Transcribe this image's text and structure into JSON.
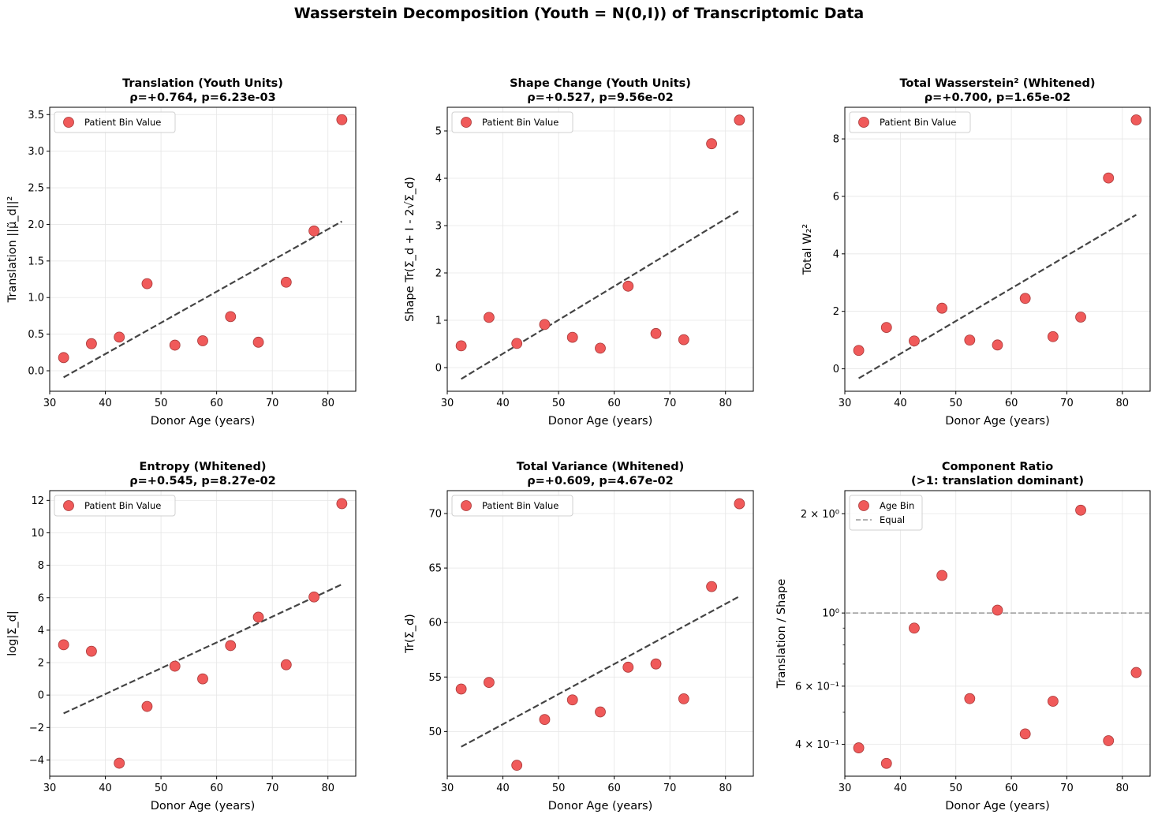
{
  "figure_title": "Wasserstein Decomposition (Youth = N(0,I)) of Transcriptomic Data",
  "colors": {
    "point": "#f05a5a",
    "point_edge": "#a83a3a",
    "trend": "#444444",
    "ref_line": "#999999",
    "grid": "#e6e6e6"
  },
  "chart_data": [
    {
      "type": "scatter",
      "title": "Translation (Youth Units)",
      "subtitle": "ρ=+0.764, p=6.23e-03",
      "xlabel": "Donor Age (years)",
      "ylabel": "Translation ||μ̃_d||²",
      "xlim": [
        30,
        85
      ],
      "ylim": [
        -0.28,
        3.6
      ],
      "xticks": [
        30,
        40,
        50,
        60,
        70,
        80
      ],
      "xtick_labels": [
        "30",
        "40",
        "50",
        "60",
        "70",
        "80"
      ],
      "yticks": [
        0,
        0.5,
        1,
        1.5,
        2,
        2.5,
        3,
        3.5
      ],
      "ytick_labels": [
        "0.0",
        "0.5",
        "1.0",
        "1.5",
        "2.0",
        "2.5",
        "3.0",
        "3.5"
      ],
      "yscale": "linear",
      "grid": true,
      "legend": "upper-left",
      "legend_entries": [
        "Patient Bin Value"
      ],
      "x": [
        32.5,
        37.5,
        42.5,
        47.5,
        52.5,
        57.5,
        62.5,
        67.5,
        72.5,
        77.5,
        82.5
      ],
      "y": [
        0.18,
        0.37,
        0.46,
        1.19,
        0.35,
        0.41,
        0.74,
        0.39,
        1.21,
        1.91,
        3.43
      ],
      "trend": {
        "x": [
          32.5,
          82.5
        ],
        "y": [
          -0.09,
          2.04
        ]
      }
    },
    {
      "type": "scatter",
      "title": "Shape Change (Youth Units)",
      "subtitle": "ρ=+0.527, p=9.56e-02",
      "xlabel": "Donor Age (years)",
      "ylabel": "Shape Tr(Σ_d + I - 2√Σ_d)",
      "xlim": [
        30,
        85
      ],
      "ylim": [
        -0.5,
        5.5
      ],
      "xticks": [
        30,
        40,
        50,
        60,
        70,
        80
      ],
      "xtick_labels": [
        "30",
        "40",
        "50",
        "60",
        "70",
        "80"
      ],
      "yticks": [
        0,
        1,
        2,
        3,
        4,
        5
      ],
      "ytick_labels": [
        "0",
        "1",
        "2",
        "3",
        "4",
        "5"
      ],
      "yscale": "linear",
      "grid": true,
      "legend": "upper-left",
      "legend_entries": [
        "Patient Bin Value"
      ],
      "x": [
        32.5,
        37.5,
        42.5,
        47.5,
        52.5,
        57.5,
        62.5,
        67.5,
        72.5,
        77.5,
        82.5
      ],
      "y": [
        0.46,
        1.06,
        0.51,
        0.91,
        0.64,
        0.41,
        1.72,
        0.72,
        0.59,
        4.73,
        5.23
      ],
      "trend": {
        "x": [
          32.5,
          82.5
        ],
        "y": [
          -0.24,
          3.32
        ]
      }
    },
    {
      "type": "scatter",
      "title": "Total Wasserstein² (Whitened)",
      "subtitle": "ρ=+0.700, p=1.65e-02",
      "xlabel": "Donor Age (years)",
      "ylabel": "Total W₂²",
      "xlim": [
        30,
        85
      ],
      "ylim": [
        -0.78,
        9.1
      ],
      "xticks": [
        30,
        40,
        50,
        60,
        70,
        80
      ],
      "xtick_labels": [
        "30",
        "40",
        "50",
        "60",
        "70",
        "80"
      ],
      "yticks": [
        0,
        2,
        4,
        6,
        8
      ],
      "ytick_labels": [
        "0",
        "2",
        "4",
        "6",
        "8"
      ],
      "yscale": "linear",
      "grid": true,
      "legend": "upper-left",
      "legend_entries": [
        "Patient Bin Value"
      ],
      "x": [
        32.5,
        37.5,
        42.5,
        47.5,
        52.5,
        57.5,
        62.5,
        67.5,
        72.5,
        77.5,
        82.5
      ],
      "y": [
        0.64,
        1.44,
        0.97,
        2.11,
        1.0,
        0.83,
        2.45,
        1.12,
        1.8,
        6.64,
        8.66
      ],
      "trend": {
        "x": [
          32.5,
          82.5
        ],
        "y": [
          -0.33,
          5.36
        ]
      }
    },
    {
      "type": "scatter",
      "title": "Entropy (Whitened)",
      "subtitle": "ρ=+0.545, p=8.27e-02",
      "xlabel": "Donor Age (years)",
      "ylabel": "log|Σ_d|",
      "xlim": [
        30,
        85
      ],
      "ylim": [
        -5.0,
        12.6
      ],
      "xticks": [
        30,
        40,
        50,
        60,
        70,
        80
      ],
      "xtick_labels": [
        "30",
        "40",
        "50",
        "60",
        "70",
        "80"
      ],
      "yticks": [
        -4,
        -2,
        0,
        2,
        4,
        6,
        8,
        10,
        12
      ],
      "ytick_labels": [
        "−4",
        "−2",
        "0",
        "2",
        "4",
        "6",
        "8",
        "10",
        "12"
      ],
      "yscale": "linear",
      "grid": true,
      "legend": "upper-left",
      "legend_entries": [
        "Patient Bin Value"
      ],
      "x": [
        32.5,
        37.5,
        42.5,
        47.5,
        52.5,
        57.5,
        62.5,
        67.5,
        72.5,
        77.5,
        82.5
      ],
      "y": [
        3.1,
        2.7,
        -4.2,
        -0.7,
        1.78,
        1.0,
        3.05,
        4.8,
        1.87,
        6.05,
        11.8
      ],
      "trend": {
        "x": [
          32.5,
          82.5
        ],
        "y": [
          -1.13,
          6.82
        ]
      }
    },
    {
      "type": "scatter",
      "title": "Total Variance (Whitened)",
      "subtitle": "ρ=+0.609, p=4.67e-02",
      "xlabel": "Donor Age (years)",
      "ylabel": "Tr(Σ_d)",
      "xlim": [
        30,
        85
      ],
      "ylim": [
        45.9,
        72.1
      ],
      "xticks": [
        30,
        40,
        50,
        60,
        70,
        80
      ],
      "xtick_labels": [
        "30",
        "40",
        "50",
        "60",
        "70",
        "80"
      ],
      "yticks": [
        50,
        55,
        60,
        65,
        70
      ],
      "ytick_labels": [
        "50",
        "55",
        "60",
        "65",
        "70"
      ],
      "yscale": "linear",
      "grid": true,
      "legend": "upper-left",
      "legend_entries": [
        "Patient Bin Value"
      ],
      "x": [
        32.5,
        37.5,
        42.5,
        47.5,
        52.5,
        57.5,
        62.5,
        67.5,
        72.5,
        77.5,
        82.5
      ],
      "y": [
        53.9,
        54.5,
        46.9,
        51.1,
        52.9,
        51.8,
        55.9,
        56.2,
        53.0,
        63.3,
        70.9
      ],
      "trend": {
        "x": [
          32.5,
          82.5
        ],
        "y": [
          48.6,
          62.4
        ]
      }
    },
    {
      "type": "scatter",
      "title": "Component Ratio",
      "subtitle": "(>1: translation dominant)",
      "xlabel": "Donor Age (years)",
      "ylabel": "Translation / Shape",
      "xlim": [
        30,
        85
      ],
      "ylim": [
        0.32,
        2.35
      ],
      "xticks": [
        30,
        40,
        50,
        60,
        70,
        80
      ],
      "xtick_labels": [
        "30",
        "40",
        "50",
        "60",
        "70",
        "80"
      ],
      "yticks": [
        0.4,
        0.6,
        1,
        2
      ],
      "ytick_labels": [
        "4 × 10⁻¹",
        "6 × 10⁻¹",
        "10⁰",
        "2 × 10⁰"
      ],
      "yscale": "log",
      "grid": true,
      "legend": "upper-left",
      "legend_entries": [
        "Age Bin",
        "Equal"
      ],
      "x": [
        32.5,
        37.5,
        42.5,
        47.5,
        52.5,
        57.5,
        62.5,
        67.5,
        72.5,
        77.5,
        82.5
      ],
      "y": [
        0.39,
        0.35,
        0.9,
        1.3,
        0.55,
        1.02,
        0.43,
        0.54,
        2.05,
        0.41,
        0.66
      ],
      "ref_line": {
        "y": 1
      }
    }
  ]
}
